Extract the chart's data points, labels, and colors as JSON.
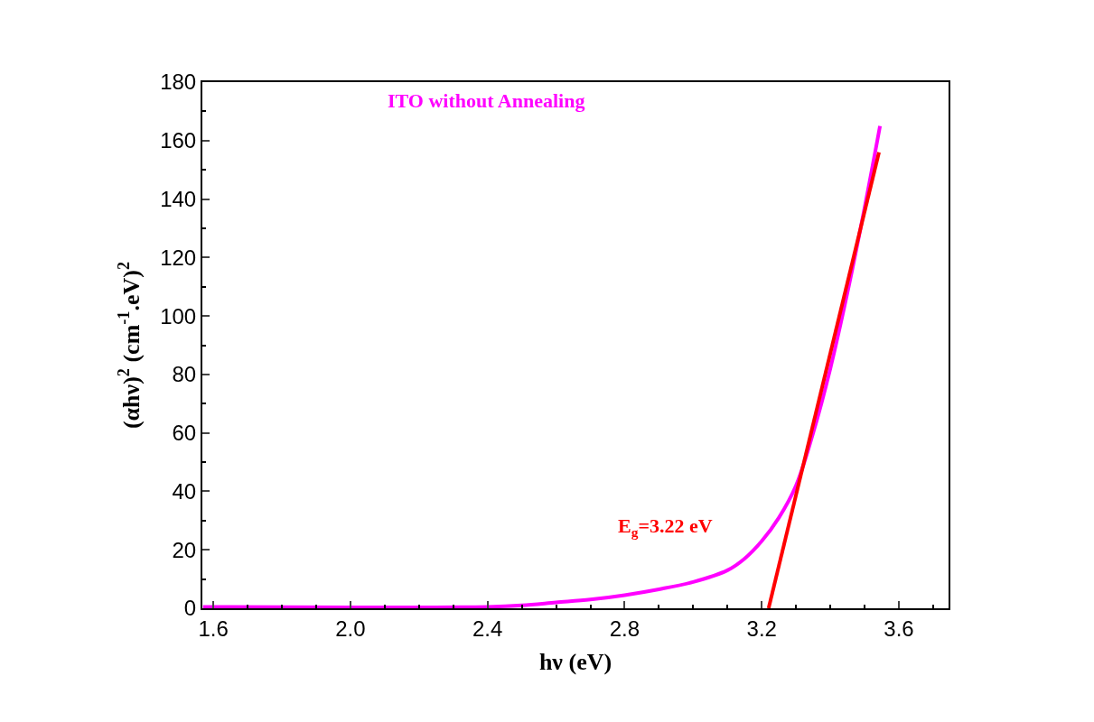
{
  "chart_data": {
    "type": "line",
    "xlabel": "hν (eV)",
    "ylabel": "(αhν)$^{2}$ (cm$^{-1}$.eV)$^{2}$",
    "xlim": [
      1.568,
      3.745
    ],
    "xticks": [
      1.6,
      {
        "value": 2.0,
        "label": "2.0"
      },
      2.4,
      2.8,
      3.2,
      3.6
    ],
    "ylim": [
      0,
      180
    ],
    "yticks": [
      0,
      20,
      40,
      60,
      80,
      100,
      120,
      140,
      160,
      180
    ],
    "legend": false,
    "marker": "none",
    "line_style": "solid",
    "series": [
      {
        "name": "ITO without Annealing",
        "color": "#ff00ff",
        "x": [
          1.57,
          2.0,
          2.4,
          2.5,
          2.6,
          2.7,
          2.8,
          2.9,
          3.0,
          3.1,
          3.15,
          3.2,
          3.25,
          3.3,
          3.35,
          3.4,
          3.45,
          3.5,
          3.545
        ],
        "values": [
          0.5,
          0.3,
          0.5,
          1,
          2,
          3,
          4.5,
          6.5,
          9,
          13,
          17,
          23,
          31,
          42,
          60,
          82,
          108,
          137,
          165
        ]
      },
      {
        "color": "#ff0000",
        "x": [
          3.22,
          3.542
        ],
        "values": [
          0,
          156
        ]
      }
    ],
    "annotations": [
      "E$_{g}$=3.22 eV"
    ]
  }
}
